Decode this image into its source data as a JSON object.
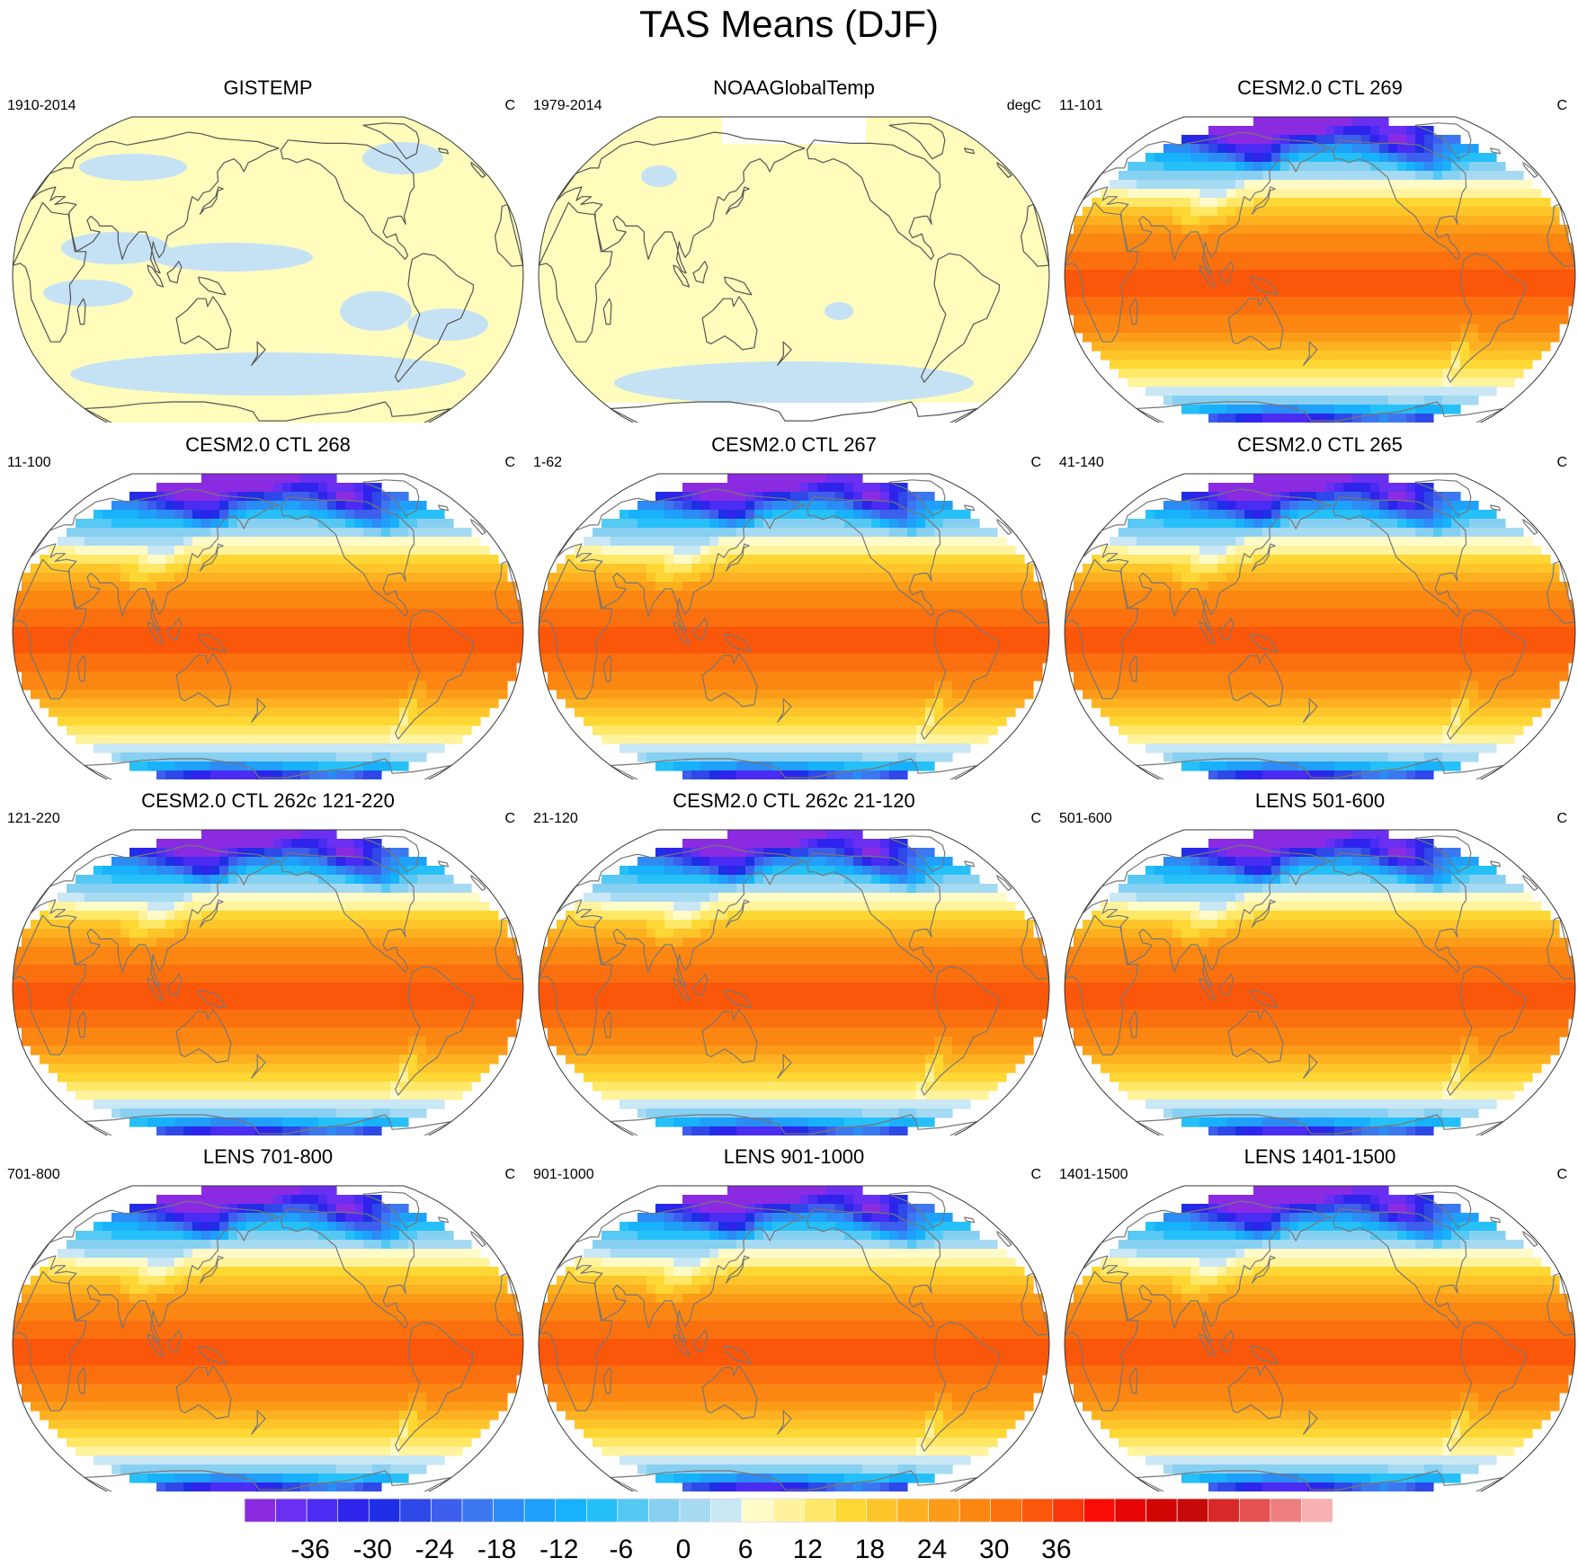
{
  "title": "TAS Means (DJF)",
  "panels": [
    {
      "title": "GISTEMP",
      "period": "1910-2014",
      "units": "C",
      "style": "obs"
    },
    {
      "title": "NOAAGlobalTemp",
      "period": "1979-2014",
      "units": "degC",
      "style": "obs"
    },
    {
      "title": "CESM2.0 CTL 269",
      "period": "11-101",
      "units": "C",
      "style": "model"
    },
    {
      "title": "CESM2.0 CTL 268",
      "period": "11-100",
      "units": "C",
      "style": "model"
    },
    {
      "title": "CESM2.0 CTL 267",
      "period": "1-62",
      "units": "C",
      "style": "model"
    },
    {
      "title": "CESM2.0 CTL 265",
      "period": "41-140",
      "units": "C",
      "style": "model"
    },
    {
      "title": "CESM2.0 CTL 262c 121-220",
      "period": "121-220",
      "units": "C",
      "style": "model"
    },
    {
      "title": "CESM2.0 CTL 262c 21-120",
      "period": "21-120",
      "units": "C",
      "style": "model"
    },
    {
      "title": "LENS 501-600",
      "period": "501-600",
      "units": "C",
      "style": "model"
    },
    {
      "title": "LENS 701-800",
      "period": "701-800",
      "units": "C",
      "style": "model"
    },
    {
      "title": "LENS 901-1000",
      "period": "901-1000",
      "units": "C",
      "style": "model"
    },
    {
      "title": "LENS 1401-1500",
      "period": "1401-1500",
      "units": "C",
      "style": "model"
    }
  ],
  "colorbar": {
    "colors": [
      "#8a2be2",
      "#6a2ff0",
      "#4b2cf2",
      "#2e24ec",
      "#1f2fe6",
      "#2f48e8",
      "#3d5fec",
      "#3b78f0",
      "#2c8cf5",
      "#1fa0fa",
      "#17b2fb",
      "#26c0f8",
      "#56c8f4",
      "#87d0f2",
      "#a6daf2",
      "#c9e7f5",
      "#fffbc9",
      "#fff39e",
      "#ffe768",
      "#fdd733",
      "#fec52a",
      "#fdb120",
      "#fc9b18",
      "#fb8612",
      "#fb700e",
      "#fb570b",
      "#f9370a",
      "#fa0d06",
      "#e80505",
      "#d20505",
      "#c60a0a",
      "#d82828",
      "#e55050",
      "#ee7e7e",
      "#f8b0b0"
    ],
    "tick_labels": [
      "-36",
      "-30",
      "-24",
      "-18",
      "-12",
      "-6",
      "0",
      "6",
      "12",
      "18",
      "24",
      "30",
      "36"
    ]
  },
  "colors": {
    "obs_warm": "#fffcbc",
    "obs_cool": "#c5e2f5",
    "land_outline": "#555555",
    "model_outline": "#777777"
  }
}
